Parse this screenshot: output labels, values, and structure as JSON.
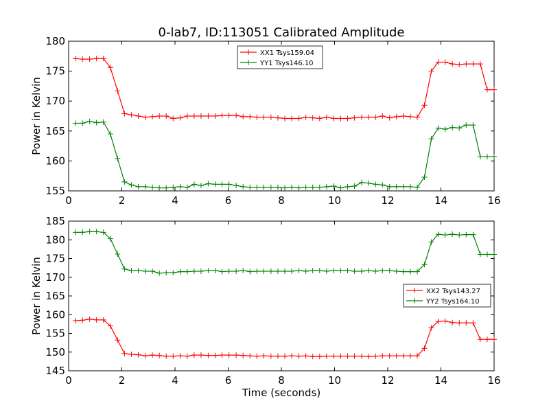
{
  "title": "0-lab7, ID:113051 Calibrated Amplitude",
  "chart_data": [
    {
      "type": "line",
      "ylabel": "Power in Kelvin",
      "xlabel": "",
      "xlim": [
        0,
        16
      ],
      "ylim": [
        155,
        180
      ],
      "xticks": [
        "0",
        "2",
        "4",
        "6",
        "8",
        "10",
        "12",
        "14",
        "16"
      ],
      "yticks": [
        "155",
        "160",
        "165",
        "170",
        "175",
        "180"
      ],
      "legend_position": "top-center",
      "x": [
        0.26,
        0.52,
        0.79,
        1.05,
        1.31,
        1.57,
        1.84,
        2.1,
        2.36,
        2.62,
        2.89,
        3.15,
        3.41,
        3.67,
        3.93,
        4.2,
        4.46,
        4.72,
        4.98,
        5.25,
        5.51,
        5.77,
        6.03,
        6.3,
        6.56,
        6.82,
        7.08,
        7.34,
        7.61,
        7.87,
        8.13,
        8.39,
        8.66,
        8.92,
        9.18,
        9.44,
        9.7,
        9.97,
        10.23,
        10.49,
        10.75,
        11.02,
        11.28,
        11.54,
        11.8,
        12.07,
        12.33,
        12.59,
        12.85,
        13.11,
        13.38,
        13.64,
        13.9,
        14.16,
        14.43,
        14.69,
        14.95,
        15.21,
        15.48,
        15.74,
        16.0
      ],
      "series": [
        {
          "name": "XX1 Tsys159.04",
          "color": "#ff0000",
          "values": [
            177.1,
            177.0,
            177.0,
            177.1,
            177.1,
            175.6,
            171.7,
            167.9,
            167.7,
            167.5,
            167.3,
            167.4,
            167.5,
            167.5,
            167.1,
            167.2,
            167.5,
            167.5,
            167.5,
            167.5,
            167.5,
            167.6,
            167.6,
            167.6,
            167.4,
            167.4,
            167.3,
            167.3,
            167.3,
            167.2,
            167.1,
            167.1,
            167.1,
            167.3,
            167.2,
            167.1,
            167.3,
            167.1,
            167.1,
            167.1,
            167.2,
            167.3,
            167.3,
            167.3,
            167.5,
            167.2,
            167.4,
            167.5,
            167.4,
            167.3,
            169.3,
            175.0,
            176.5,
            176.5,
            176.2,
            176.1,
            176.2,
            176.2,
            176.2,
            171.9,
            171.9
          ]
        },
        {
          "name": "YY1 Tsys146.10",
          "color": "#008000",
          "values": [
            166.3,
            166.3,
            166.6,
            166.4,
            166.5,
            164.5,
            160.4,
            156.5,
            156.0,
            155.7,
            155.7,
            155.6,
            155.5,
            155.5,
            155.6,
            155.7,
            155.6,
            156.1,
            155.9,
            156.2,
            156.1,
            156.1,
            156.1,
            155.9,
            155.7,
            155.6,
            155.6,
            155.6,
            155.6,
            155.6,
            155.5,
            155.6,
            155.5,
            155.6,
            155.6,
            155.6,
            155.7,
            155.8,
            155.5,
            155.7,
            155.8,
            156.4,
            156.3,
            156.1,
            156.0,
            155.7,
            155.7,
            155.7,
            155.7,
            155.6,
            157.3,
            163.7,
            165.5,
            165.3,
            165.6,
            165.5,
            166.0,
            166.0,
            160.7,
            160.7,
            160.7
          ]
        }
      ]
    },
    {
      "type": "line",
      "ylabel": "Power in Kelvin",
      "xlabel": "Time (seconds)",
      "xlim": [
        0,
        16
      ],
      "ylim": [
        145,
        185
      ],
      "xticks": [
        "0",
        "2",
        "4",
        "6",
        "8",
        "10",
        "12",
        "14",
        "16"
      ],
      "yticks": [
        "145",
        "150",
        "155",
        "160",
        "165",
        "170",
        "175",
        "180",
        "185"
      ],
      "legend_position": "center-right",
      "x": [
        0.26,
        0.52,
        0.79,
        1.05,
        1.31,
        1.57,
        1.84,
        2.1,
        2.36,
        2.62,
        2.89,
        3.15,
        3.41,
        3.67,
        3.93,
        4.2,
        4.46,
        4.72,
        4.98,
        5.25,
        5.51,
        5.77,
        6.03,
        6.3,
        6.56,
        6.82,
        7.08,
        7.34,
        7.61,
        7.87,
        8.13,
        8.39,
        8.66,
        8.92,
        9.18,
        9.44,
        9.7,
        9.97,
        10.23,
        10.49,
        10.75,
        11.02,
        11.28,
        11.54,
        11.8,
        12.07,
        12.33,
        12.59,
        12.85,
        13.11,
        13.38,
        13.64,
        13.9,
        14.16,
        14.43,
        14.69,
        14.95,
        15.21,
        15.48,
        15.74,
        16.0
      ],
      "series": [
        {
          "name": "XX2 Tsys143.27",
          "color": "#ff0000",
          "values": [
            158.4,
            158.5,
            158.8,
            158.6,
            158.6,
            157.0,
            153.2,
            149.6,
            149.4,
            149.3,
            149.0,
            149.2,
            149.1,
            148.9,
            148.9,
            149.0,
            148.9,
            149.2,
            149.2,
            149.1,
            149.1,
            149.2,
            149.2,
            149.2,
            149.1,
            149.0,
            148.9,
            149.0,
            148.9,
            148.9,
            148.9,
            149.0,
            148.9,
            149.0,
            148.8,
            148.8,
            148.9,
            148.9,
            148.9,
            148.9,
            148.9,
            148.9,
            148.8,
            148.9,
            149.0,
            149.0,
            149.0,
            149.0,
            149.0,
            149.0,
            151.0,
            156.5,
            158.2,
            158.3,
            157.9,
            157.8,
            157.8,
            157.8,
            153.4,
            153.4,
            153.4
          ]
        },
        {
          "name": "YY2 Tsys164.10",
          "color": "#008000",
          "values": [
            182.0,
            182.0,
            182.2,
            182.2,
            182.0,
            180.3,
            176.2,
            172.2,
            171.8,
            171.8,
            171.6,
            171.6,
            171.1,
            171.2,
            171.2,
            171.5,
            171.5,
            171.6,
            171.6,
            171.8,
            171.8,
            171.5,
            171.6,
            171.6,
            171.8,
            171.5,
            171.6,
            171.6,
            171.6,
            171.6,
            171.6,
            171.6,
            171.8,
            171.6,
            171.8,
            171.8,
            171.6,
            171.8,
            171.8,
            171.8,
            171.6,
            171.6,
            171.8,
            171.6,
            171.8,
            171.8,
            171.6,
            171.5,
            171.5,
            171.5,
            173.4,
            179.4,
            181.5,
            181.3,
            181.5,
            181.3,
            181.4,
            181.4,
            176.1,
            176.1,
            176.1
          ]
        }
      ]
    }
  ]
}
